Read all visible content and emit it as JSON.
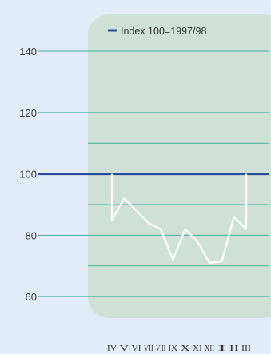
{
  "chart_data": {
    "type": "line",
    "title": "",
    "xlabel": "",
    "ylabel": "",
    "ylim": [
      53,
      152
    ],
    "yticks": [
      60,
      80,
      100,
      120,
      140
    ],
    "gridlines": [
      60,
      70,
      80,
      90,
      100,
      110,
      120,
      130,
      140
    ],
    "categories": [
      "IV",
      "V",
      "VI",
      "VII",
      "VIII",
      "IX",
      "X",
      "XI",
      "XII",
      "I",
      "II",
      "III"
    ],
    "baseline": {
      "name": "Index 100=1997/98",
      "value": 100
    },
    "series": [
      {
        "values": [
          85,
          92,
          88,
          84,
          82,
          72,
          82,
          78,
          71,
          71.5,
          86,
          82
        ]
      }
    ],
    "legend_position": "top-right",
    "colors": {
      "background": "#e3ecf6",
      "plot_panel": "#cfe0d6",
      "grid": "#3fae98",
      "baseline": "#2a4a9a",
      "series": "#ffffff"
    }
  }
}
